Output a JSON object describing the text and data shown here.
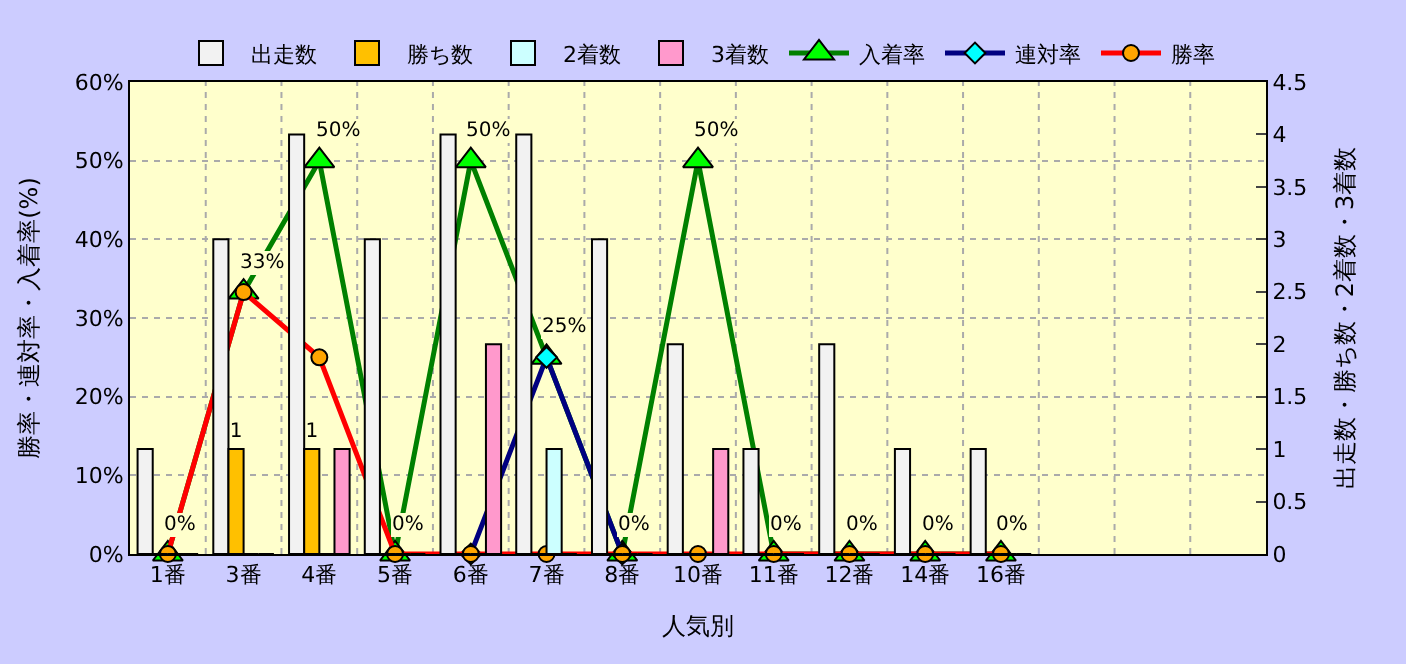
{
  "chart_data": {
    "type": "bar",
    "xlabel": "人気別",
    "ylabel": "勝率・連対率・入着率(%)",
    "y2label": "出走数・勝ち数・2着数・3着数",
    "categories": [
      "1番",
      "3番",
      "4番",
      "5番",
      "6番",
      "7番",
      "8番",
      "10番",
      "11番",
      "12番",
      "14番",
      "16番",
      null,
      null,
      null
    ],
    "series": [
      {
        "name": "出走数",
        "axis": "y2",
        "color": "#f2f2f2",
        "values": [
          1,
          3,
          4,
          3,
          4,
          4,
          3,
          2,
          1,
          2,
          1,
          1,
          null,
          null,
          null
        ]
      },
      {
        "name": "勝ち数",
        "axis": "y2",
        "color": "#ffc000",
        "values": [
          0,
          1,
          1,
          0,
          0,
          0,
          0,
          0,
          0,
          0,
          0,
          0,
          null,
          null,
          null
        ],
        "value_labels": [
          null,
          "1",
          "1",
          null,
          null,
          null,
          null,
          null,
          null,
          null,
          null,
          null,
          null,
          null,
          null
        ]
      },
      {
        "name": "2着数",
        "axis": "y2",
        "color": "#ccffff",
        "values": [
          0,
          0,
          0,
          0,
          0,
          1,
          0,
          0,
          0,
          0,
          0,
          0,
          null,
          null,
          null
        ]
      },
      {
        "name": "3着数",
        "axis": "y2",
        "color": "#ff99cc",
        "values": [
          0,
          0,
          1,
          0,
          2,
          0,
          0,
          1,
          0,
          0,
          0,
          0,
          null,
          null,
          null
        ]
      },
      {
        "name": "入着率",
        "type": "line",
        "color": "#008000",
        "marker": "triangle",
        "values": [
          0,
          33.3,
          50,
          0,
          50,
          25,
          0,
          50,
          0,
          0,
          0,
          0,
          null,
          null,
          null
        ],
        "value_labels": [
          "0%",
          "33%",
          "50%",
          "0%",
          "50%",
          "25%",
          "0%",
          "50%",
          "0%",
          "0%",
          "0%",
          "0%",
          null,
          null,
          null
        ]
      },
      {
        "name": "連対率",
        "type": "line",
        "color": "#000080",
        "marker": "diamond",
        "values": [
          null,
          null,
          null,
          null,
          0,
          25,
          0,
          null,
          null,
          null,
          null,
          null,
          null,
          null,
          null
        ]
      },
      {
        "name": "勝率",
        "type": "line",
        "color": "#ff0000",
        "marker": "circle",
        "values": [
          0,
          33.3,
          25,
          0,
          0,
          0,
          0,
          0,
          0,
          0,
          0,
          0,
          null,
          null,
          null
        ]
      }
    ],
    "ylim": [
      0,
      60
    ],
    "yticks": [
      {
        "value": 0,
        "label": "0%"
      },
      {
        "value": 10,
        "label": "10%"
      },
      {
        "value": 20,
        "label": "20%"
      },
      {
        "value": 30,
        "label": "30%"
      },
      {
        "value": 40,
        "label": "40%"
      },
      {
        "value": 50,
        "label": "50%"
      },
      {
        "value": 60,
        "label": "60%"
      }
    ],
    "y2lim": [
      0,
      4.5
    ],
    "y2ticks": [
      0,
      0.5,
      1,
      1.5,
      2,
      2.5,
      3,
      3.5,
      4,
      4.5
    ],
    "grid": true,
    "legend": "top"
  }
}
